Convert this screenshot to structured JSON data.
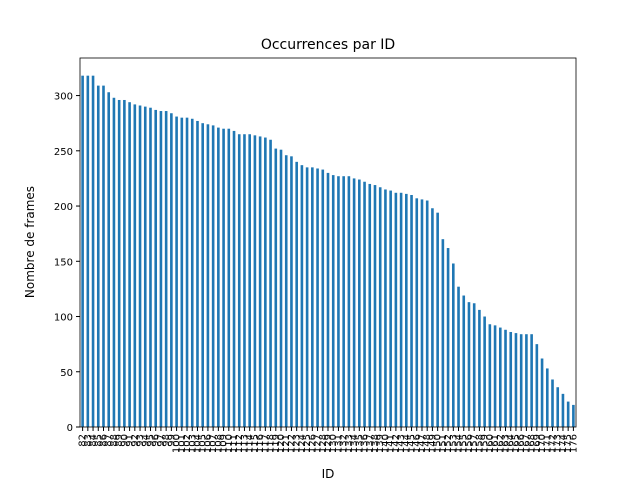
{
  "chart_data": {
    "type": "bar",
    "title": "Occurrences par ID",
    "x_label": "ID",
    "y_label": "Nombre de frames",
    "categories": [
      "82",
      "83",
      "84",
      "85",
      "86",
      "87",
      "88",
      "89",
      "90",
      "91",
      "92",
      "93",
      "94",
      "95",
      "96",
      "97",
      "98",
      "99",
      "100",
      "101",
      "102",
      "103",
      "104",
      "105",
      "106",
      "107",
      "108",
      "109",
      "110",
      "111",
      "112",
      "113",
      "114",
      "115",
      "116",
      "117",
      "118",
      "119",
      "120",
      "121",
      "122",
      "123",
      "124",
      "125",
      "126",
      "127",
      "128",
      "129",
      "130",
      "131",
      "132",
      "133",
      "134",
      "135",
      "136",
      "137",
      "138",
      "139",
      "140",
      "141",
      "142",
      "143",
      "144",
      "145",
      "146",
      "147",
      "148",
      "149",
      "150",
      "151",
      "152",
      "153",
      "154",
      "155",
      "156",
      "157",
      "158",
      "159",
      "160",
      "161",
      "162",
      "163",
      "164",
      "165",
      "166",
      "167",
      "168",
      "169",
      "170",
      "171",
      "172",
      "173",
      "174",
      "175",
      "176"
    ],
    "values": [
      318,
      318,
      318,
      309,
      309,
      303,
      298,
      296,
      296,
      294,
      292,
      291,
      290,
      289,
      287,
      286,
      286,
      284,
      281,
      280,
      280,
      279,
      277,
      275,
      274,
      273,
      271,
      270,
      270,
      268,
      265,
      265,
      265,
      264,
      263,
      262,
      260,
      252,
      251,
      246,
      245,
      240,
      237,
      235,
      235,
      234,
      233,
      230,
      228,
      227,
      227,
      227,
      225,
      224,
      222,
      220,
      219,
      217,
      215,
      214,
      212,
      212,
      211,
      210,
      207,
      206,
      205,
      198,
      194,
      170,
      162,
      148,
      127,
      119,
      113,
      112,
      106,
      100,
      93,
      92,
      90,
      88,
      86,
      85,
      84,
      84,
      84,
      75,
      62,
      53,
      43,
      36,
      30,
      23,
      20
    ],
    "color": "#1f77b4",
    "ylim": [
      0,
      334
    ],
    "yticks": [
      0,
      50,
      100,
      150,
      200,
      250,
      300
    ]
  }
}
